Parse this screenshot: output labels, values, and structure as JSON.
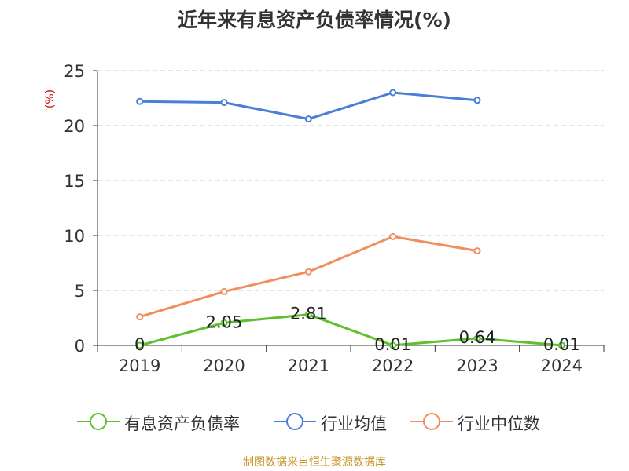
{
  "title": "近年来有息资产负债率情况(%)",
  "source": "制图数据来自恒生聚源数据库",
  "chart_data": {
    "type": "line",
    "title": "近年来有息资产负债率情况(%)",
    "ylabel": "(%)",
    "xlabel": "",
    "categories": [
      "2019",
      "2020",
      "2021",
      "2022",
      "2023",
      "2024"
    ],
    "ylim": [
      0,
      25
    ],
    "yticks": [
      0,
      5,
      10,
      15,
      20,
      25
    ],
    "grid": true,
    "legend": "bottom",
    "series": [
      {
        "name": "有息资产负债率",
        "color": "#5cc12b",
        "values": [
          0,
          2.05,
          2.81,
          0.01,
          0.64,
          0.01
        ],
        "labels": [
          "0",
          "2.05",
          "2.81",
          "0.01",
          "0.64",
          "0.01"
        ]
      },
      {
        "name": "行业均值",
        "color": "#4a7fd6",
        "values": [
          22.2,
          22.1,
          20.6,
          23.0,
          22.3,
          null
        ]
      },
      {
        "name": "行业中位数",
        "color": "#f28d5c",
        "values": [
          2.6,
          4.9,
          6.7,
          9.9,
          8.6,
          null
        ]
      }
    ]
  }
}
